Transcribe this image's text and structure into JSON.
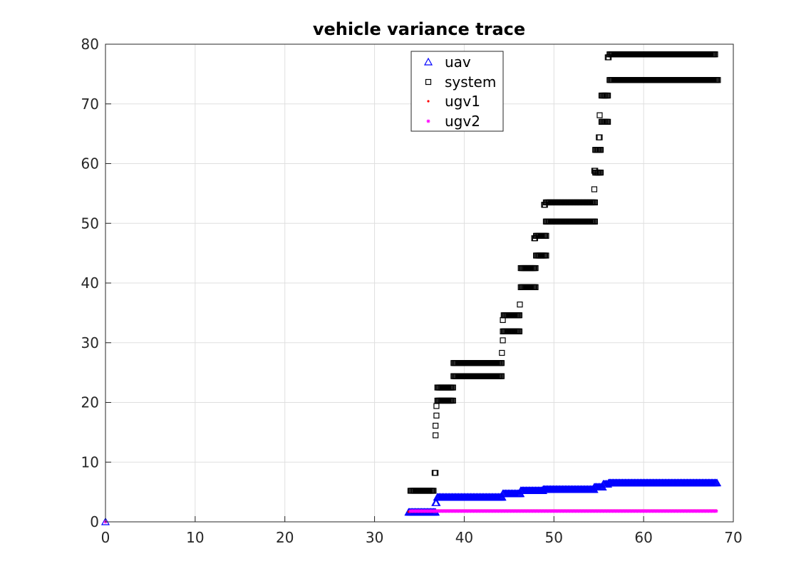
{
  "chart_data": {
    "type": "scatter",
    "title": "vehicle variance trace",
    "xlabel": "",
    "ylabel": "",
    "xlim": [
      0,
      70
    ],
    "ylim": [
      0,
      80
    ],
    "x_ticks": [
      0,
      10,
      20,
      30,
      40,
      50,
      60,
      70
    ],
    "y_ticks": [
      0,
      10,
      20,
      30,
      40,
      50,
      60,
      70,
      80
    ],
    "grid": true,
    "legend_position": "top-center",
    "series": [
      {
        "name": "uav",
        "marker": "triangle",
        "color": "#0000ff",
        "steps": [
          [
            0,
            0,
            0
          ],
          [
            33.8,
            36.8,
            1.6
          ],
          [
            36.8,
            37.0,
            3.2
          ],
          [
            37.0,
            44.3,
            4.1
          ],
          [
            44.3,
            46.3,
            4.7
          ],
          [
            46.3,
            48.8,
            5.2
          ],
          [
            48.8,
            54.5,
            5.4
          ],
          [
            54.5,
            55.5,
            5.8
          ],
          [
            55.5,
            56.1,
            6.3
          ],
          [
            56.1,
            68.2,
            6.5
          ]
        ]
      },
      {
        "name": "system",
        "marker": "square",
        "color": "#000000",
        "steps": [
          [
            34.0,
            36.6,
            5.2
          ],
          [
            36.7,
            36.9,
            8.2
          ],
          [
            36.8,
            36.9,
            14.5
          ],
          [
            36.8,
            36.9,
            16.1
          ],
          [
            36.9,
            37.0,
            17.8
          ],
          [
            36.9,
            37.0,
            19.4
          ],
          [
            37.0,
            38.8,
            20.3
          ],
          [
            37.0,
            38.8,
            22.5
          ],
          [
            38.8,
            44.2,
            24.4
          ],
          [
            38.8,
            44.2,
            26.6
          ],
          [
            44.2,
            44.3,
            28.3
          ],
          [
            44.3,
            44.4,
            30.4
          ],
          [
            44.3,
            46.2,
            31.9
          ],
          [
            44.3,
            44.4,
            33.8
          ],
          [
            44.4,
            46.2,
            34.6
          ],
          [
            46.2,
            46.3,
            36.4
          ],
          [
            46.3,
            48.0,
            39.3
          ],
          [
            46.3,
            48.0,
            42.5
          ],
          [
            47.8,
            48.0,
            47.5
          ],
          [
            48.0,
            49.2,
            44.6
          ],
          [
            48.0,
            49.2,
            47.9
          ],
          [
            48.9,
            49.1,
            53.1
          ],
          [
            49.1,
            54.6,
            50.3
          ],
          [
            49.1,
            54.6,
            53.5
          ],
          [
            54.5,
            54.6,
            55.7
          ],
          [
            54.5,
            54.7,
            58.8
          ],
          [
            54.6,
            55.3,
            58.5
          ],
          [
            54.6,
            55.3,
            62.3
          ],
          [
            55.0,
            55.2,
            64.4
          ],
          [
            55.1,
            55.2,
            68.1
          ],
          [
            55.3,
            56.1,
            67.0
          ],
          [
            55.3,
            56.1,
            71.4
          ],
          [
            56.0,
            56.2,
            77.8
          ],
          [
            56.2,
            68.3,
            74.0
          ],
          [
            56.2,
            68.0,
            78.3
          ]
        ]
      },
      {
        "name": "ugv1",
        "marker": "dot",
        "color": "#ff0000",
        "steps": [
          [
            0,
            0,
            0
          ],
          [
            33.8,
            36.8,
            1.7
          ],
          [
            36.8,
            68.2,
            1.9
          ]
        ]
      },
      {
        "name": "ugv2",
        "marker": "star",
        "color": "#ff00ff",
        "steps": [
          [
            0,
            0,
            0
          ],
          [
            34.0,
            36.8,
            1.8
          ],
          [
            36.8,
            68.2,
            1.8
          ]
        ]
      }
    ]
  }
}
